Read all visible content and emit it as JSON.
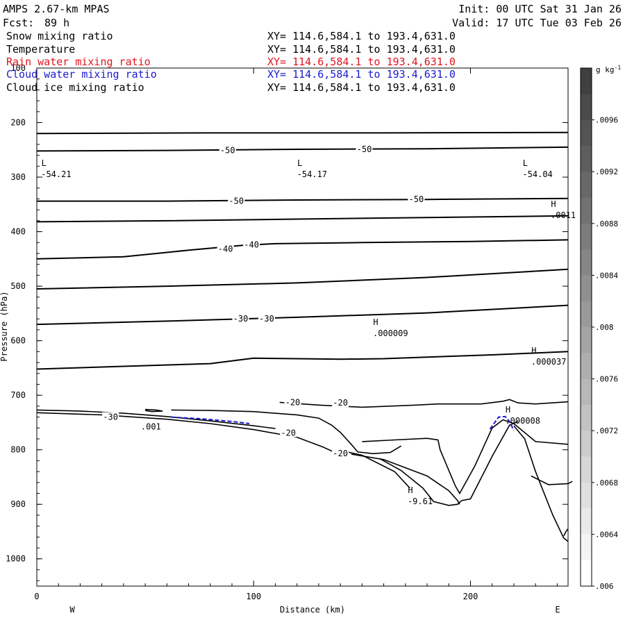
{
  "header": {
    "model": "AMPS 2.67-km MPAS",
    "init": "Init: 00 UTC Sat 31 Jan 26",
    "fcst_label": "Fcst:",
    "fcst_value": "89 h",
    "valid": "Valid: 17 UTC Tue 03 Feb 26"
  },
  "fields": [
    {
      "name": "Snow mixing ratio",
      "xy": "XY= 114.6,584.1 to 193.4,631.0",
      "color": "#000000"
    },
    {
      "name": "Temperature",
      "xy": "XY= 114.6,584.1 to 193.4,631.0",
      "color": "#000000"
    },
    {
      "name": "Rain water mixing ratio",
      "xy": "XY= 114.6,584.1 to 193.4,631.0",
      "color": "#e0141e"
    },
    {
      "name": "Cloud water mixing ratio",
      "xy": "XY= 114.6,584.1 to 193.4,631.0",
      "color": "#1a1acc"
    },
    {
      "name": "Cloud ice mixing ratio",
      "xy": "XY= 114.6,584.1 to 193.4,631.0",
      "color": "#000000"
    }
  ],
  "chart_data": {
    "type": "contour-cross-section",
    "xlabel": "Distance (km)",
    "ylabel": "Pressure (hPa)",
    "xlim": [
      0,
      245
    ],
    "ylim": [
      100,
      1050
    ],
    "x_ticks": [
      0,
      100,
      200
    ],
    "y_ticks": [
      100,
      200,
      300,
      400,
      500,
      600,
      700,
      800,
      900,
      1000
    ],
    "left_end_label": "W",
    "right_end_label": "E",
    "temperature_isotherms": [
      {
        "label": "",
        "points": [
          [
            0,
            220
          ],
          [
            80,
            219
          ],
          [
            160,
            219
          ],
          [
            245,
            218
          ]
        ]
      },
      {
        "label": "-50",
        "points": [
          [
            0,
            252
          ],
          [
            60,
            251
          ],
          [
            120,
            249
          ],
          [
            180,
            248
          ],
          [
            245,
            245
          ]
        ]
      },
      {
        "label": "-50",
        "points": [
          [
            0,
            344
          ],
          [
            60,
            344
          ],
          [
            120,
            342
          ],
          [
            180,
            341
          ],
          [
            245,
            339
          ]
        ]
      },
      {
        "label": "",
        "points": [
          [
            0,
            382
          ],
          [
            60,
            380
          ],
          [
            120,
            377
          ],
          [
            180,
            374
          ],
          [
            245,
            371
          ]
        ]
      },
      {
        "label": "-40",
        "points": [
          [
            0,
            450
          ],
          [
            40,
            446
          ],
          [
            70,
            434
          ],
          [
            95,
            425
          ],
          [
            110,
            422
          ],
          [
            150,
            420
          ],
          [
            200,
            418
          ],
          [
            245,
            415
          ]
        ]
      },
      {
        "label": "",
        "points": [
          [
            0,
            505
          ],
          [
            60,
            500
          ],
          [
            120,
            494
          ],
          [
            180,
            484
          ],
          [
            245,
            469
          ]
        ]
      },
      {
        "label": "-30",
        "points": [
          [
            0,
            570
          ],
          [
            60,
            564
          ],
          [
            120,
            557
          ],
          [
            180,
            549
          ],
          [
            245,
            535
          ]
        ]
      },
      {
        "label": "",
        "points": [
          [
            0,
            652
          ],
          [
            40,
            647
          ],
          [
            80,
            642
          ],
          [
            92,
            636
          ],
          [
            100,
            632
          ],
          [
            120,
            633
          ],
          [
            140,
            634
          ],
          [
            160,
            633
          ],
          [
            180,
            630
          ],
          [
            210,
            626
          ],
          [
            245,
            620
          ]
        ]
      }
    ],
    "isotherm_labels": [
      {
        "text": "-50",
        "x": 88,
        "p": 251
      },
      {
        "text": "-50",
        "x": 151,
        "p": 249
      },
      {
        "text": "-50",
        "x": 92,
        "p": 344
      },
      {
        "text": "-50",
        "x": 175,
        "p": 341
      },
      {
        "text": "-40",
        "x": 87,
        "p": 432
      },
      {
        "text": "-40",
        "x": 99,
        "p": 424
      },
      {
        "text": "-30",
        "x": 94,
        "p": 560
      },
      {
        "text": "-30",
        "x": 106,
        "p": 560
      },
      {
        "text": "-20",
        "x": 118,
        "p": 713
      },
      {
        "text": "-20",
        "x": 140,
        "p": 714
      },
      {
        "text": "-20",
        "x": 116,
        "p": 769
      },
      {
        "text": "-20",
        "x": 140,
        "p": 807
      },
      {
        "text": "-30",
        "x": 34,
        "p": 740
      }
    ],
    "lower_contours": [
      [
        [
          0,
          727
        ],
        [
          20,
          729
        ],
        [
          40,
          733
        ],
        [
          60,
          739
        ],
        [
          80,
          747
        ],
        [
          100,
          756
        ],
        [
          110,
          761
        ]
      ],
      [
        [
          0,
          732
        ],
        [
          30,
          736
        ],
        [
          60,
          744
        ],
        [
          80,
          752
        ],
        [
          100,
          763
        ],
        [
          120,
          777
        ],
        [
          132,
          795
        ],
        [
          138,
          806
        ],
        [
          143,
          808
        ]
      ],
      [
        [
          62,
          727
        ],
        [
          80,
          728
        ],
        [
          100,
          730
        ],
        [
          120,
          736
        ],
        [
          130,
          742
        ],
        [
          136,
          755
        ],
        [
          140,
          768
        ],
        [
          145,
          790
        ],
        [
          148,
          804
        ],
        [
          155,
          807
        ],
        [
          163,
          805
        ],
        [
          168,
          793
        ]
      ],
      [
        [
          50,
          726
        ],
        [
          55,
          727
        ],
        [
          58,
          729
        ],
        [
          53,
          730
        ],
        [
          50,
          728
        ]
      ],
      [
        [
          145,
          808
        ],
        [
          160,
          818
        ],
        [
          180,
          848
        ],
        [
          190,
          875
        ],
        [
          194,
          893
        ],
        [
          195,
          900
        ]
      ],
      [
        [
          158,
          816
        ],
        [
          168,
          838
        ],
        [
          178,
          870
        ],
        [
          183,
          895
        ],
        [
          190,
          902
        ],
        [
          194,
          900
        ],
        [
          196,
          893
        ],
        [
          200,
          890
        ],
        [
          210,
          812
        ],
        [
          218,
          755
        ],
        [
          222,
          748
        ]
      ],
      [
        [
          142,
          803
        ],
        [
          150,
          810
        ],
        [
          165,
          840
        ],
        [
          172,
          870
        ]
      ],
      [
        [
          112,
          713
        ],
        [
          130,
          718
        ],
        [
          150,
          722
        ],
        [
          175,
          718
        ],
        [
          185,
          716
        ],
        [
          205,
          716
        ],
        [
          215,
          711
        ],
        [
          218,
          708
        ],
        [
          222,
          714
        ],
        [
          230,
          716
        ],
        [
          245,
          712
        ]
      ],
      [
        [
          150,
          785
        ],
        [
          165,
          782
        ],
        [
          180,
          779
        ],
        [
          185,
          782
        ],
        [
          186,
          800
        ],
        [
          193,
          866
        ],
        [
          195,
          880
        ],
        [
          202,
          830
        ],
        [
          210,
          760
        ],
        [
          215,
          745
        ],
        [
          220,
          752
        ],
        [
          230,
          785
        ],
        [
          245,
          790
        ]
      ],
      [
        [
          220,
          756
        ],
        [
          225,
          780
        ],
        [
          230,
          840
        ],
        [
          233,
          870
        ],
        [
          238,
          920
        ],
        [
          243,
          962
        ],
        [
          245,
          968
        ]
      ],
      [
        [
          228,
          848
        ],
        [
          232,
          856
        ],
        [
          236,
          864
        ],
        [
          245,
          862
        ],
        [
          247,
          858
        ]
      ],
      [
        [
          243,
          958
        ],
        [
          244,
          950
        ],
        [
          245,
          945
        ]
      ]
    ],
    "cloud_water_contours": [
      [
        [
          62,
          740
        ],
        [
          75,
          743
        ],
        [
          90,
          748
        ],
        [
          98,
          752
        ]
      ],
      [
        [
          209,
          762
        ],
        [
          211,
          751
        ],
        [
          213,
          740
        ],
        [
          216,
          739
        ],
        [
          218,
          748
        ],
        [
          220,
          765
        ]
      ]
    ],
    "extrema": [
      {
        "type": "L",
        "value": "-54.21",
        "x": 2,
        "p": 282
      },
      {
        "type": "L",
        "value": "-54.17",
        "x": 120,
        "p": 282
      },
      {
        "type": "L",
        "value": "-54.04",
        "x": 224,
        "p": 282
      },
      {
        "type": "H",
        "value": ".0011",
        "x": 237,
        "p": 357
      },
      {
        "type": "H",
        "value": ".000009",
        "x": 155,
        "p": 574
      },
      {
        "type": "H",
        "value": ".000037",
        "x": 228,
        "p": 626
      },
      {
        "type": "H",
        "value": ".000008",
        "x": 216,
        "p": 734
      },
      {
        "type": "H",
        "value": "-9.61",
        "x": 171,
        "p": 882
      },
      {
        "type": "",
        "value": ".001",
        "x": 48,
        "p": 745
      }
    ],
    "colorbar": {
      "unit": "g kg",
      "unit_exp": "-1",
      "levels": [
        ".0096",
        ".0092",
        ".0088",
        ".0084",
        ".008",
        ".0076",
        ".0072",
        ".0068",
        ".0064",
        ".006"
      ],
      "shades": [
        "#404040",
        "#4a4a4a",
        "#545454",
        "#5e5e5e",
        "#686868",
        "#727272",
        "#7c7c7c",
        "#868686",
        "#909090",
        "#9a9a9a",
        "#a4a4a4",
        "#aeaeae",
        "#b8b8b8",
        "#c2c2c2",
        "#cccccc",
        "#d6d6d6",
        "#e0e0e0",
        "#eaeaea",
        "#f4f4f4",
        "#ffffff"
      ]
    }
  }
}
